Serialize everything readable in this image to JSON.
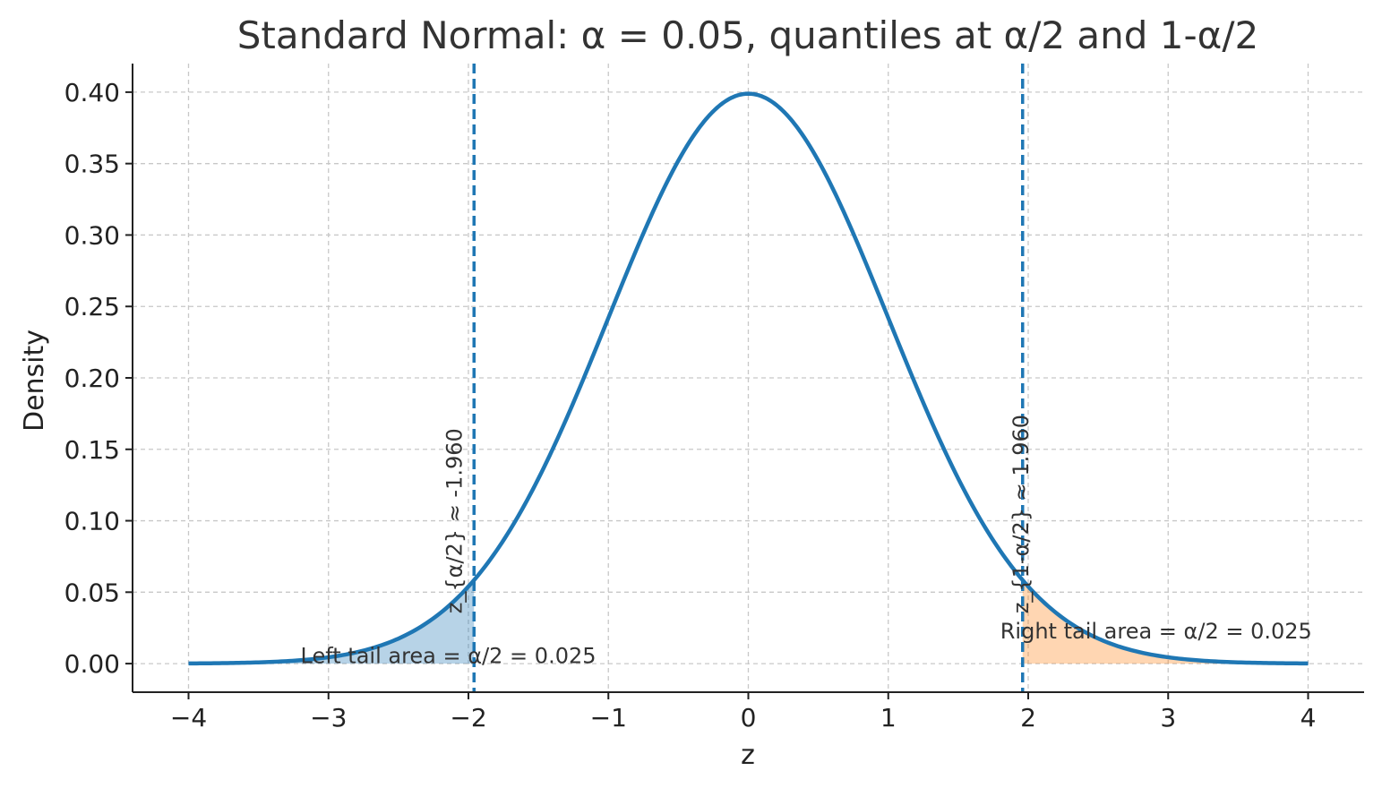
{
  "chart_data": {
    "type": "line",
    "title": "Standard Normal: α = 0.05, quantiles at α/2 and 1-α/2",
    "xlabel": "z",
    "ylabel": "Density",
    "xlim": [
      -4.4,
      4.4
    ],
    "ylim": [
      -0.02,
      0.42
    ],
    "xticks": [
      -4,
      -3,
      -2,
      -1,
      0,
      1,
      2,
      3,
      4
    ],
    "xtick_labels": [
      "−4",
      "−3",
      "−2",
      "−1",
      "0",
      "1",
      "2",
      "3",
      "4"
    ],
    "yticks": [
      0.0,
      0.05,
      0.1,
      0.15,
      0.2,
      0.25,
      0.3,
      0.35,
      0.4
    ],
    "ytick_labels": [
      "0.00",
      "0.05",
      "0.10",
      "0.15",
      "0.20",
      "0.25",
      "0.30",
      "0.35",
      "0.40"
    ],
    "grid": true,
    "alpha": 0.05,
    "series": [
      {
        "distribution": "standard-normal-pdf",
        "x_range": [
          -4,
          4
        ],
        "color": "#1f77b4"
      }
    ],
    "quantiles": [
      {
        "x": -1.96,
        "label": "z_{α/2} ≈ -1.960",
        "color": "#1f77b4"
      },
      {
        "x": 1.96,
        "label": "z_{1-α/2} ≈ 1.960",
        "color": "#1f77b4"
      }
    ],
    "shaded_regions": [
      {
        "from": -4,
        "to": -1.96,
        "color": "#1f77b4",
        "opacity": 0.32
      },
      {
        "from": 1.96,
        "to": 4,
        "color": "#ff7f0e",
        "opacity": 0.32
      }
    ],
    "annotations": [
      {
        "text": "Left tail area = α/2 = 0.025",
        "x": -3.2,
        "y": 0.0005,
        "anchor": "start"
      },
      {
        "text": "Right tail area = α/2 = 0.025",
        "x": 1.8,
        "y": 0.0175,
        "anchor": "start"
      }
    ]
  }
}
